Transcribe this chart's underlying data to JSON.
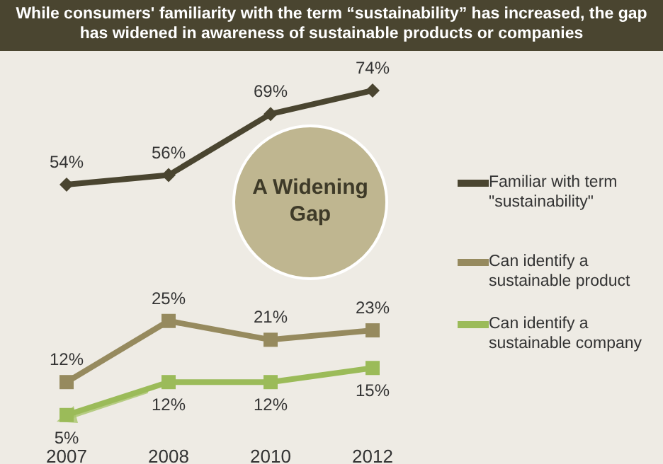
{
  "chart_data": {
    "type": "line",
    "title": "While consumers' familiarity with the term “sustainability” has increased, the gap has widened in awareness of sustainable products or companies",
    "categories": [
      "2007",
      "2008",
      "2010",
      "2012"
    ],
    "series": [
      {
        "name": "Familiar with term \"sustainability\"",
        "color": "#4a4530",
        "values": [
          54,
          56,
          69,
          74
        ],
        "value_labels": [
          "54%",
          "56%",
          "69%",
          "74%"
        ],
        "marker": "diamond"
      },
      {
        "name": "Can identify a sustainable product",
        "color": "#968a5e",
        "values": [
          12,
          25,
          21,
          23
        ],
        "value_labels": [
          "12%",
          "25%",
          "21%",
          "23%"
        ],
        "marker": "square"
      },
      {
        "name": "Can identify a sustainable company",
        "color": "#9bbb59",
        "values": [
          5,
          12,
          12,
          15
        ],
        "value_labels": [
          "5%",
          "12%",
          "12%",
          "15%"
        ],
        "marker": "square"
      }
    ],
    "tick_labels": "x",
    "legend": "right",
    "line_style": "solid",
    "annotations": [
      "A Widening Gap"
    ]
  }
}
